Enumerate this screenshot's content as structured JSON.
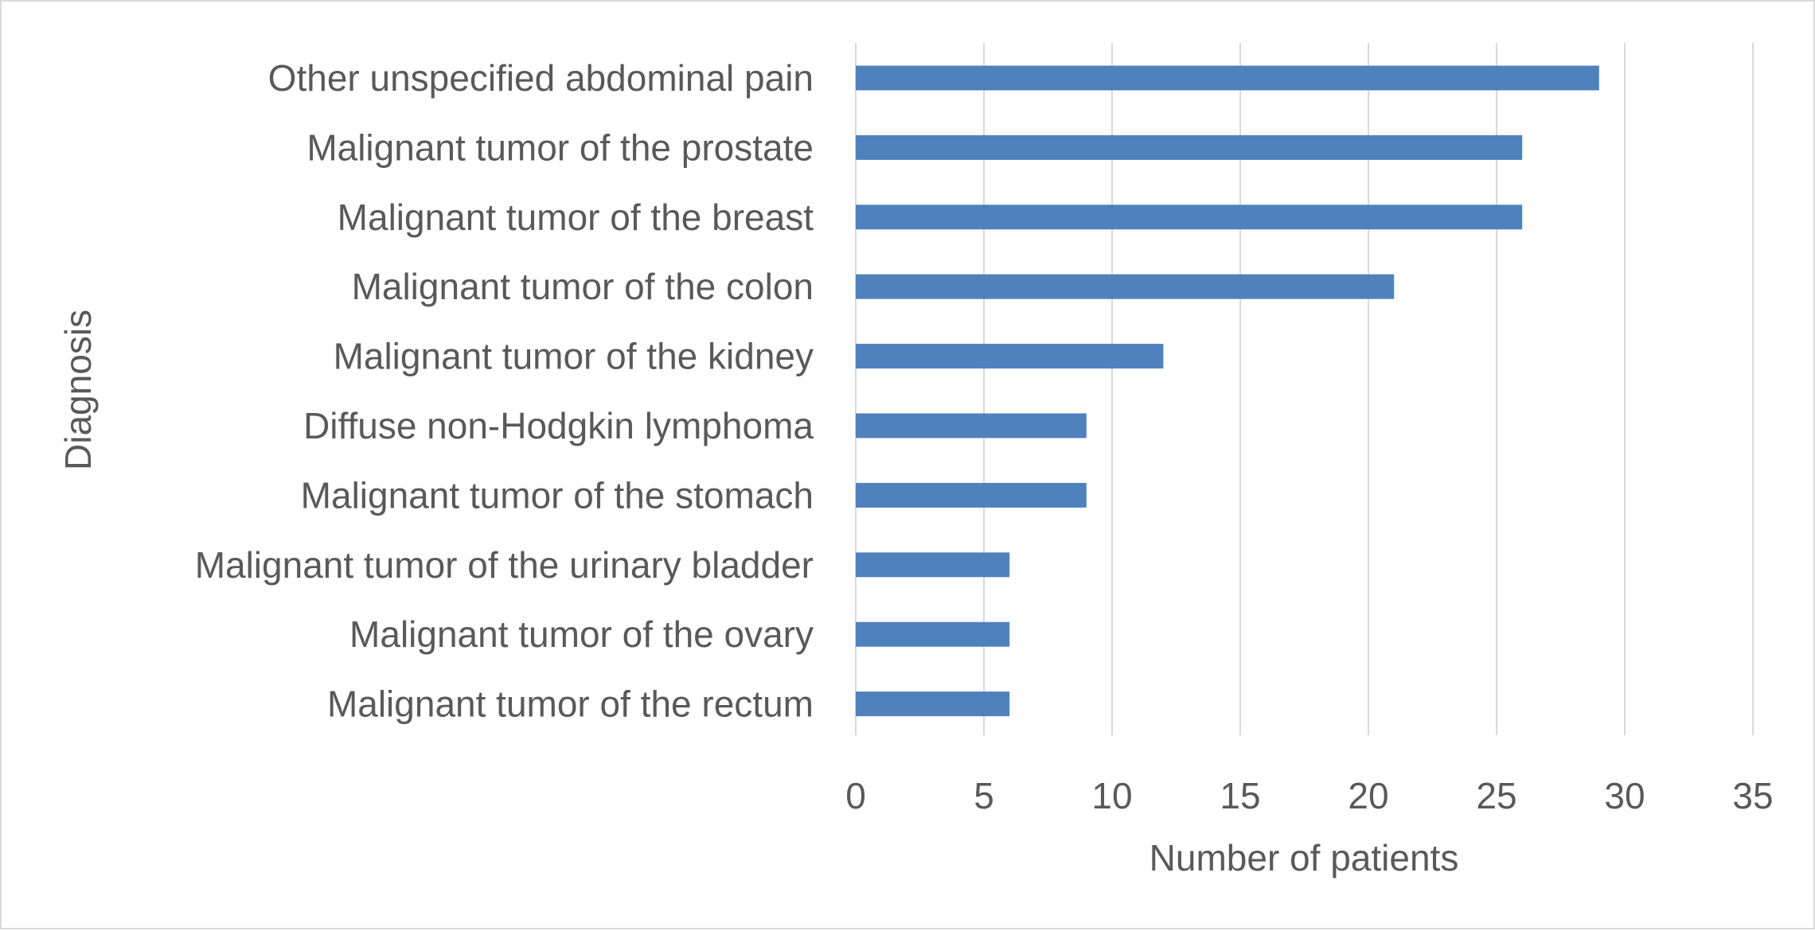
{
  "chart_data": {
    "type": "bar",
    "orientation": "horizontal",
    "categories": [
      "Other unspecified abdominal pain",
      "Malignant tumor of the prostate",
      "Malignant tumor of the breast",
      "Malignant tumor of the colon",
      "Malignant tumor of the kidney",
      "Diffuse non-Hodgkin lymphoma",
      "Malignant tumor of the stomach",
      "Malignant tumor of the urinary bladder",
      "Malignant tumor of the ovary",
      "Malignant tumor of the rectum"
    ],
    "values": [
      29,
      26,
      26,
      21,
      12,
      9,
      9,
      6,
      6,
      6
    ],
    "xlabel": "Number of patients",
    "ylabel": "Diagnosis",
    "xlim": [
      0,
      35
    ],
    "xticks": [
      0,
      5,
      10,
      15,
      20,
      25,
      30,
      35
    ],
    "bar_color": "#4f81bd",
    "grid": true,
    "legend": "none"
  }
}
